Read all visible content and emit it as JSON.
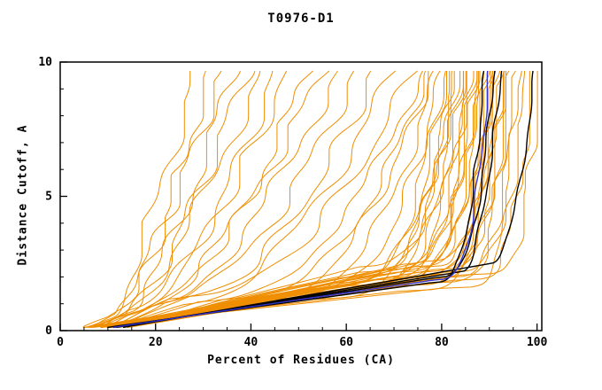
{
  "chart_data": {
    "type": "line",
    "title": "T0976-D1",
    "xlabel": "Percent of Residues (CA)",
    "ylabel": "Distance Cutoff, A",
    "xlim": [
      0,
      101
    ],
    "ylim": [
      0,
      10
    ],
    "y_top": 9.7,
    "x_ticks": [
      0,
      20,
      40,
      60,
      80,
      100
    ],
    "x_minor_step": 5,
    "y_ticks": [
      0,
      5,
      10
    ],
    "y_minor_step": 1,
    "grid": false,
    "legend": "none",
    "colors": {
      "o": "#ef8e00",
      "k": "#000000",
      "b": "#3333cc"
    },
    "series_key": [
      "color",
      "x_start",
      "x_knee",
      "y_knee",
      "x_end",
      "rise_exponent"
    ],
    "series": [
      [
        "o",
        5,
        10,
        0.5,
        28,
        0.75
      ],
      [
        "o",
        5,
        12,
        0.6,
        31,
        0.7
      ],
      [
        "o",
        6,
        11,
        0.5,
        34,
        0.8
      ],
      [
        "o",
        6,
        13,
        0.7,
        36,
        0.65
      ],
      [
        "o",
        7,
        14,
        0.6,
        39,
        0.75
      ],
      [
        "o",
        7,
        12,
        0.5,
        42,
        0.7
      ],
      [
        "o",
        8,
        15,
        0.8,
        45,
        0.6
      ],
      [
        "o",
        8,
        16,
        0.7,
        48,
        0.7
      ],
      [
        "o",
        9,
        18,
        0.9,
        52,
        0.6
      ],
      [
        "o",
        9,
        16,
        0.6,
        55,
        0.65
      ],
      [
        "o",
        10,
        20,
        1.0,
        58,
        0.6
      ],
      [
        "o",
        10,
        22,
        1.1,
        62,
        0.55
      ],
      [
        "o",
        11,
        24,
        1.2,
        66,
        0.5
      ],
      [
        "o",
        11,
        26,
        1.0,
        70,
        0.55
      ],
      [
        "o",
        12,
        28,
        1.3,
        74,
        0.5
      ],
      [
        "o",
        12,
        30,
        1.1,
        76,
        0.45
      ],
      [
        "o",
        13,
        35,
        1.2,
        77,
        0.4
      ],
      [
        "o",
        6,
        40,
        1.0,
        78,
        0.45
      ],
      [
        "o",
        7,
        45,
        1.2,
        79,
        0.4
      ],
      [
        "o",
        8,
        50,
        1.4,
        80,
        0.35
      ],
      [
        "o",
        9,
        55,
        1.6,
        80.5,
        0.3
      ],
      [
        "o",
        10,
        58,
        1.8,
        81,
        0.3
      ],
      [
        "o",
        11,
        60,
        2.0,
        82,
        0.28
      ],
      [
        "o",
        12,
        62,
        2.2,
        82.5,
        0.3
      ],
      [
        "o",
        13,
        64,
        2.4,
        83,
        0.32
      ],
      [
        "o",
        6,
        55,
        1.2,
        83.5,
        0.3
      ],
      [
        "o",
        7,
        60,
        1.5,
        84,
        0.28
      ],
      [
        "o",
        8,
        63,
        1.7,
        84.5,
        0.3
      ],
      [
        "o",
        9,
        65,
        1.9,
        85,
        0.27
      ],
      [
        "o",
        10,
        68,
        2.1,
        85.5,
        0.3
      ],
      [
        "o",
        11,
        70,
        2.3,
        86,
        0.28
      ],
      [
        "o",
        12,
        72,
        2.5,
        86.5,
        0.3
      ],
      [
        "o",
        13,
        66,
        1.6,
        87,
        0.25
      ],
      [
        "o",
        6,
        68,
        1.8,
        87.5,
        0.27
      ],
      [
        "o",
        7,
        70,
        2.0,
        88,
        0.25
      ],
      [
        "o",
        8,
        72,
        2.2,
        88.5,
        0.28
      ],
      [
        "o",
        9,
        74,
        2.4,
        89,
        0.26
      ],
      [
        "o",
        10,
        75,
        2.0,
        89.5,
        0.24
      ],
      [
        "o",
        11,
        76,
        2.2,
        90,
        0.26
      ],
      [
        "o",
        12,
        77,
        2.4,
        90.5,
        0.25
      ],
      [
        "o",
        13,
        78,
        2.6,
        91,
        0.27
      ],
      [
        "o",
        6,
        72,
        1.5,
        91.5,
        0.22
      ],
      [
        "o",
        7,
        74,
        1.7,
        92,
        0.24
      ],
      [
        "o",
        8,
        76,
        1.9,
        92.5,
        0.22
      ],
      [
        "o",
        9,
        78,
        2.1,
        93,
        0.24
      ],
      [
        "o",
        10,
        80,
        2.3,
        93.5,
        0.25
      ],
      [
        "o",
        11,
        79,
        1.8,
        94,
        0.22
      ],
      [
        "o",
        12,
        81,
        2.0,
        95,
        0.23
      ],
      [
        "o",
        13,
        82,
        2.2,
        96,
        0.22
      ],
      [
        "o",
        6,
        80,
        1.6,
        97,
        0.2
      ],
      [
        "o",
        8,
        83,
        1.9,
        98.5,
        0.2
      ],
      [
        "o",
        10,
        85,
        2.1,
        100,
        0.18
      ],
      [
        "k",
        10,
        78,
        1.8,
        89,
        0.3
      ],
      [
        "k",
        11,
        80,
        2.0,
        91,
        0.35
      ],
      [
        "k",
        12,
        84,
        2.2,
        92.5,
        0.5
      ],
      [
        "k",
        13,
        90,
        2.5,
        99.5,
        0.45
      ],
      [
        "b",
        11,
        79,
        1.9,
        90,
        0.32
      ]
    ]
  }
}
